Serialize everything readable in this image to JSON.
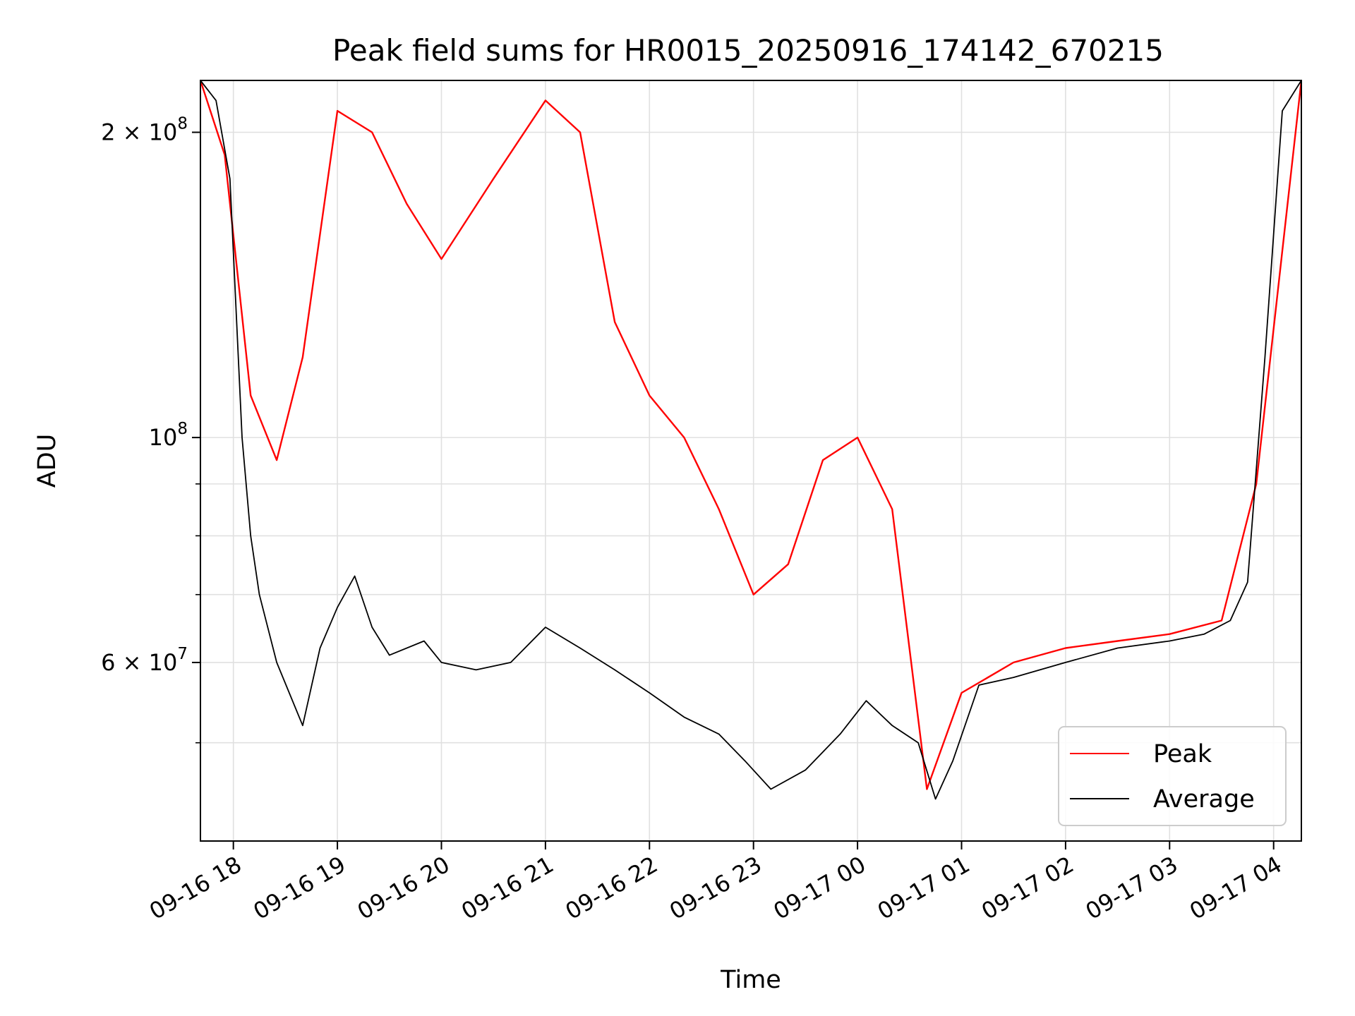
{
  "chart_data": {
    "type": "line",
    "title": "Peak field sums for HR0015_20250916_174142_670215",
    "xlabel": "Time",
    "ylabel": "ADU",
    "y_scale": "log",
    "ylim": [
      40000000,
      225000000
    ],
    "xlim": [
      "2025-09-16 17:41",
      "2025-09-17 04:16"
    ],
    "grid": true,
    "legend_position": "lower-right",
    "x_ticks": [
      {
        "t": "2025-09-16 18:00",
        "label": "09-16 18"
      },
      {
        "t": "2025-09-16 19:00",
        "label": "09-16 19"
      },
      {
        "t": "2025-09-16 20:00",
        "label": "09-16 20"
      },
      {
        "t": "2025-09-16 21:00",
        "label": "09-16 21"
      },
      {
        "t": "2025-09-16 22:00",
        "label": "09-16 22"
      },
      {
        "t": "2025-09-16 23:00",
        "label": "09-16 23"
      },
      {
        "t": "2025-09-17 00:00",
        "label": "09-17 00"
      },
      {
        "t": "2025-09-17 01:00",
        "label": "09-17 01"
      },
      {
        "t": "2025-09-17 02:00",
        "label": "09-17 02"
      },
      {
        "t": "2025-09-17 03:00",
        "label": "09-17 03"
      },
      {
        "t": "2025-09-17 04:00",
        "label": "09-17 04"
      }
    ],
    "y_ticks_major": [
      {
        "value": 60000000,
        "base": "6 × 10",
        "exp": "7"
      },
      {
        "value": 100000000,
        "base": "10",
        "exp": "8"
      },
      {
        "value": 200000000,
        "base": "2 × 10",
        "exp": "8"
      }
    ],
    "y_ticks_minor": [
      50000000,
      70000000,
      80000000,
      90000000
    ],
    "series": [
      {
        "name": "Peak",
        "color": "#ff0000",
        "x": [
          "2025-09-16 17:41",
          "2025-09-16 17:55",
          "2025-09-16 18:10",
          "2025-09-16 18:25",
          "2025-09-16 18:40",
          "2025-09-16 19:00",
          "2025-09-16 19:20",
          "2025-09-16 19:40",
          "2025-09-16 20:00",
          "2025-09-16 20:30",
          "2025-09-16 21:00",
          "2025-09-16 21:20",
          "2025-09-16 21:40",
          "2025-09-16 22:00",
          "2025-09-16 22:20",
          "2025-09-16 22:40",
          "2025-09-16 23:00",
          "2025-09-16 23:20",
          "2025-09-16 23:40",
          "2025-09-17 00:00",
          "2025-09-17 00:20",
          "2025-09-17 00:40",
          "2025-09-17 01:00",
          "2025-09-17 01:30",
          "2025-09-17 02:00",
          "2025-09-17 02:30",
          "2025-09-17 03:00",
          "2025-09-17 03:30",
          "2025-09-17 03:50",
          "2025-09-17 04:16"
        ],
        "values": [
          225000000,
          190000000,
          110000000,
          95000000,
          120000000,
          210000000,
          200000000,
          170000000,
          150000000,
          180000000,
          215000000,
          200000000,
          130000000,
          110000000,
          100000000,
          85000000,
          70000000,
          75000000,
          95000000,
          100000000,
          85000000,
          45000000,
          56000000,
          60000000,
          62000000,
          63000000,
          64000000,
          66000000,
          90000000,
          225000000
        ]
      },
      {
        "name": "Average",
        "color": "#000000",
        "x": [
          "2025-09-16 17:41",
          "2025-09-16 17:50",
          "2025-09-16 17:58",
          "2025-09-16 18:05",
          "2025-09-16 18:10",
          "2025-09-16 18:15",
          "2025-09-16 18:25",
          "2025-09-16 18:40",
          "2025-09-16 18:50",
          "2025-09-16 19:00",
          "2025-09-16 19:10",
          "2025-09-16 19:20",
          "2025-09-16 19:30",
          "2025-09-16 19:50",
          "2025-09-16 20:00",
          "2025-09-16 20:20",
          "2025-09-16 20:40",
          "2025-09-16 21:00",
          "2025-09-16 21:20",
          "2025-09-16 21:40",
          "2025-09-16 22:00",
          "2025-09-16 22:20",
          "2025-09-16 22:40",
          "2025-09-16 22:55",
          "2025-09-16 23:10",
          "2025-09-16 23:30",
          "2025-09-16 23:50",
          "2025-09-17 00:05",
          "2025-09-17 00:20",
          "2025-09-17 00:35",
          "2025-09-17 00:45",
          "2025-09-17 00:55",
          "2025-09-17 01:10",
          "2025-09-17 01:30",
          "2025-09-17 02:00",
          "2025-09-17 02:30",
          "2025-09-17 03:00",
          "2025-09-17 03:20",
          "2025-09-17 03:35",
          "2025-09-17 03:45",
          "2025-09-17 03:55",
          "2025-09-17 04:05",
          "2025-09-17 04:16"
        ],
        "values": [
          225000000,
          215000000,
          180000000,
          100000000,
          80000000,
          70000000,
          60000000,
          52000000,
          62000000,
          68000000,
          73000000,
          65000000,
          61000000,
          63000000,
          60000000,
          59000000,
          60000000,
          65000000,
          62000000,
          59000000,
          56000000,
          53000000,
          51000000,
          48000000,
          45000000,
          47000000,
          51000000,
          55000000,
          52000000,
          50000000,
          44000000,
          48000000,
          57000000,
          58000000,
          60000000,
          62000000,
          63000000,
          64000000,
          66000000,
          72000000,
          120000000,
          210000000,
          225000000
        ]
      }
    ]
  }
}
